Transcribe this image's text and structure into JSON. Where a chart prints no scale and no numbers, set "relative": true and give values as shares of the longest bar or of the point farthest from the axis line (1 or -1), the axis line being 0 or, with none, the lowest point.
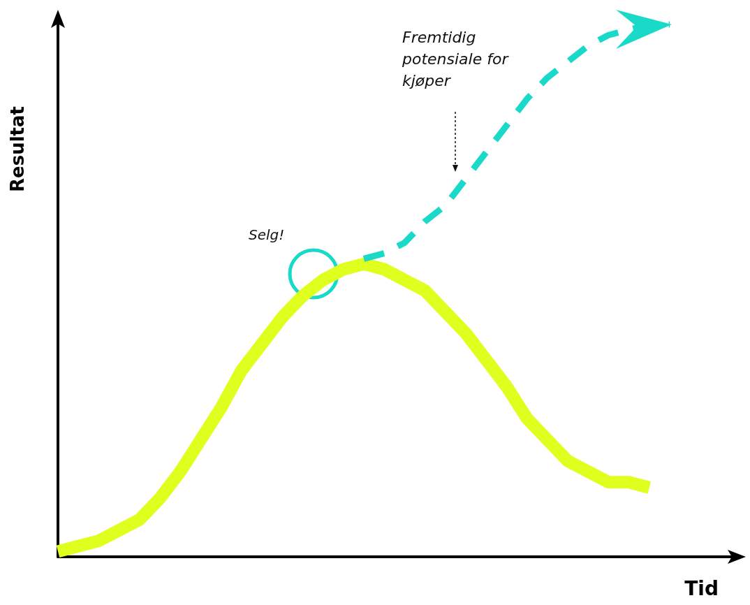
{
  "chart_data": {
    "type": "line",
    "relative": true,
    "xlabel": "Tid",
    "ylabel": "Resultat",
    "marker": "none",
    "categories": [
      null,
      null,
      null,
      null,
      null,
      null,
      null,
      null,
      null,
      null,
      null,
      null,
      null,
      null,
      null,
      null,
      null,
      null,
      null,
      null,
      null,
      null,
      null,
      null,
      null,
      null,
      null,
      null,
      null,
      null,
      null
    ],
    "series": [
      {
        "color": "#dfff1f",
        "line_style": "solid",
        "values": [
          0.01,
          0.02,
          0.03,
          0.05,
          0.07,
          0.11,
          0.16,
          0.22,
          0.28,
          0.35,
          0.4,
          0.45,
          0.49,
          0.52,
          0.54,
          0.55,
          0.54,
          0.52,
          0.5,
          0.46,
          0.42,
          0.37,
          0.32,
          0.26,
          0.22,
          0.18,
          0.16,
          0.14,
          0.14,
          0.13,
          null
        ]
      },
      {
        "color": "#19d9c9",
        "line_style": "dashed",
        "values": [
          null,
          null,
          null,
          null,
          null,
          null,
          null,
          null,
          null,
          null,
          null,
          null,
          null,
          null,
          null,
          0.56,
          0.57,
          0.59,
          0.63,
          0.66,
          0.71,
          0.76,
          0.81,
          0.86,
          0.9,
          0.93,
          0.96,
          0.98,
          0.99,
          1.0,
          1.0
        ]
      }
    ],
    "annotations": [
      "Selg!",
      "Fremtidig potensiale for kjøper"
    ]
  }
}
